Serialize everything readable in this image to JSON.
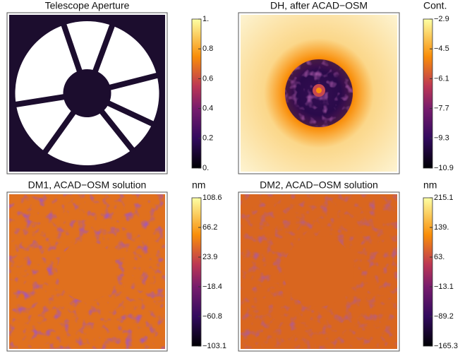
{
  "panels": [
    {
      "title": "Telescope Aperture",
      "ticks": [
        "1.",
        "0.8",
        "0.6",
        "0.4",
        "0.2",
        "0."
      ]
    },
    {
      "title": "DH, after ACAD−OSM",
      "unit": "Cont.",
      "ticks": [
        "−2.9",
        "−4.5",
        "−6.1",
        "−7.7",
        "−9.3",
        "−10.9"
      ]
    },
    {
      "title": "DM1, ACAD−OSM solution",
      "unit": "nm",
      "ticks": [
        "108.6",
        "66.2",
        "23.9",
        "−18.4",
        "−60.8",
        "−103.1"
      ]
    },
    {
      "title": "DM2, ACAD−OSM solution",
      "unit": "nm",
      "ticks": [
        "215.1",
        "139.",
        "63.",
        "−13.1",
        "−89.2",
        "−165.3"
      ]
    }
  ]
}
